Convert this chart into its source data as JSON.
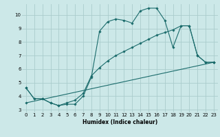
{
  "title": "",
  "xlabel": "Humidex (Indice chaleur)",
  "bg_color": "#cce8e8",
  "grid_color": "#aacccc",
  "line_color": "#1a6b6b",
  "xlim": [
    -0.5,
    23.5
  ],
  "ylim": [
    2.8,
    10.8
  ],
  "xticks": [
    0,
    1,
    2,
    3,
    4,
    5,
    6,
    7,
    8,
    9,
    10,
    11,
    12,
    13,
    14,
    15,
    16,
    17,
    18,
    19,
    20,
    21,
    22,
    23
  ],
  "yticks": [
    3,
    4,
    5,
    6,
    7,
    8,
    9,
    10
  ],
  "line1_x": [
    0,
    1,
    2,
    3,
    4,
    5,
    6,
    7,
    8,
    9,
    10,
    11,
    12,
    13,
    14,
    15,
    16,
    17,
    18,
    19,
    20,
    21,
    22,
    23
  ],
  "line1_y": [
    4.6,
    3.8,
    3.8,
    3.5,
    3.3,
    3.4,
    3.4,
    4.0,
    5.4,
    8.8,
    9.5,
    9.7,
    9.6,
    9.4,
    10.3,
    10.5,
    10.5,
    9.6,
    7.6,
    9.2,
    9.2,
    7.0,
    6.5,
    6.5
  ],
  "line2_x": [
    0,
    1,
    2,
    3,
    4,
    5,
    6,
    7,
    8,
    9,
    10,
    11,
    12,
    13,
    14,
    15,
    16,
    17,
    18,
    19,
    20,
    21,
    22,
    23
  ],
  "line2_y": [
    4.6,
    3.8,
    3.8,
    3.5,
    3.3,
    3.5,
    3.7,
    4.2,
    5.5,
    6.1,
    6.6,
    7.0,
    7.3,
    7.6,
    7.9,
    8.2,
    8.5,
    8.7,
    8.9,
    9.2,
    9.2,
    7.0,
    6.5,
    6.5
  ],
  "line3_x": [
    0,
    23
  ],
  "line3_y": [
    3.5,
    6.5
  ]
}
